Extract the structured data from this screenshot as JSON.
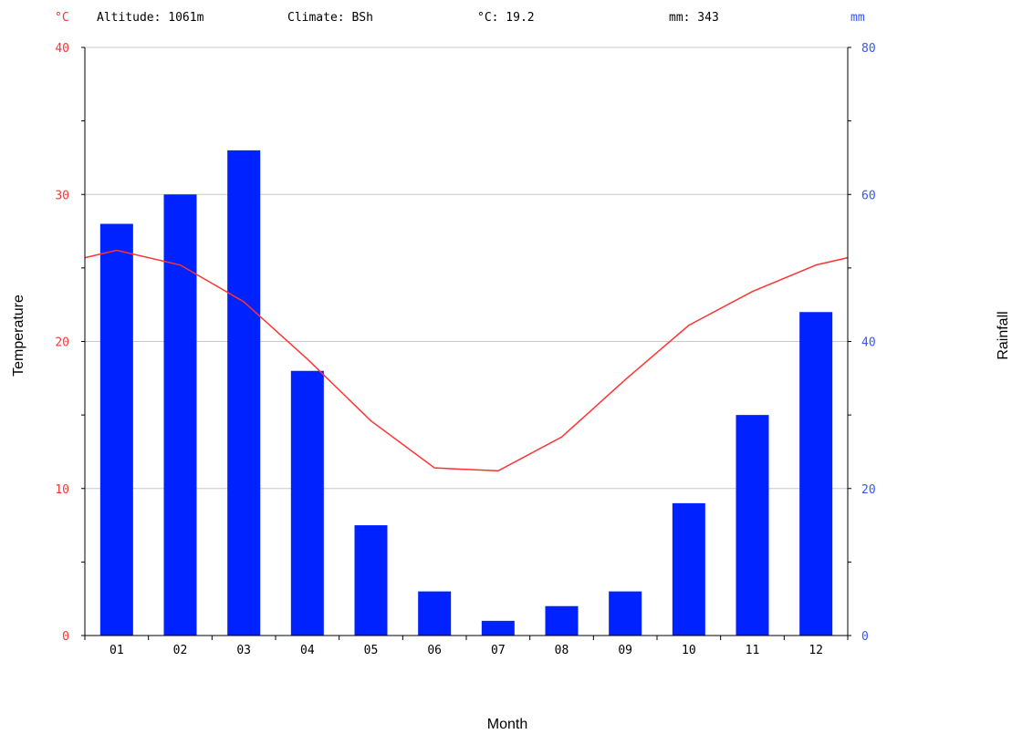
{
  "chart_data": {
    "type": "bar",
    "categories": [
      "01",
      "02",
      "03",
      "04",
      "05",
      "06",
      "07",
      "08",
      "09",
      "10",
      "11",
      "12"
    ],
    "rainfall_mm": [
      56,
      60,
      66,
      36,
      15,
      6,
      2,
      4,
      6,
      18,
      30,
      44
    ],
    "temperature_c": [
      26.2,
      25.2,
      22.7,
      18.8,
      14.6,
      11.4,
      11.2,
      13.5,
      17.4,
      21.1,
      23.4,
      25.2
    ],
    "temperature_edges_c": [
      25.7,
      25.7
    ],
    "header": {
      "left_unit": "°C",
      "altitude": "Altitude: 1061m",
      "climate": "Climate: BSh",
      "mean_temp": "°C: 19.2",
      "total_rain": "mm: 343",
      "right_unit": "mm"
    },
    "xlabel": "Month",
    "ylabel_left": "Temperature",
    "ylabel_right": "Rainfall",
    "ylim_left": [
      0,
      40
    ],
    "ylim_right": [
      0,
      80
    ],
    "yticks_left": [
      "0",
      "10",
      "20",
      "30",
      "40"
    ],
    "yticks_right": [
      "0",
      "20",
      "40",
      "60",
      "80"
    ],
    "grid": true,
    "colors": {
      "bars": "#0022ff",
      "temperature_line": "#ff3333",
      "left_axis_text": "#ff3333",
      "right_axis_text": "#3355ff",
      "grid": "#c8c8c8",
      "axis": "#000000"
    }
  }
}
